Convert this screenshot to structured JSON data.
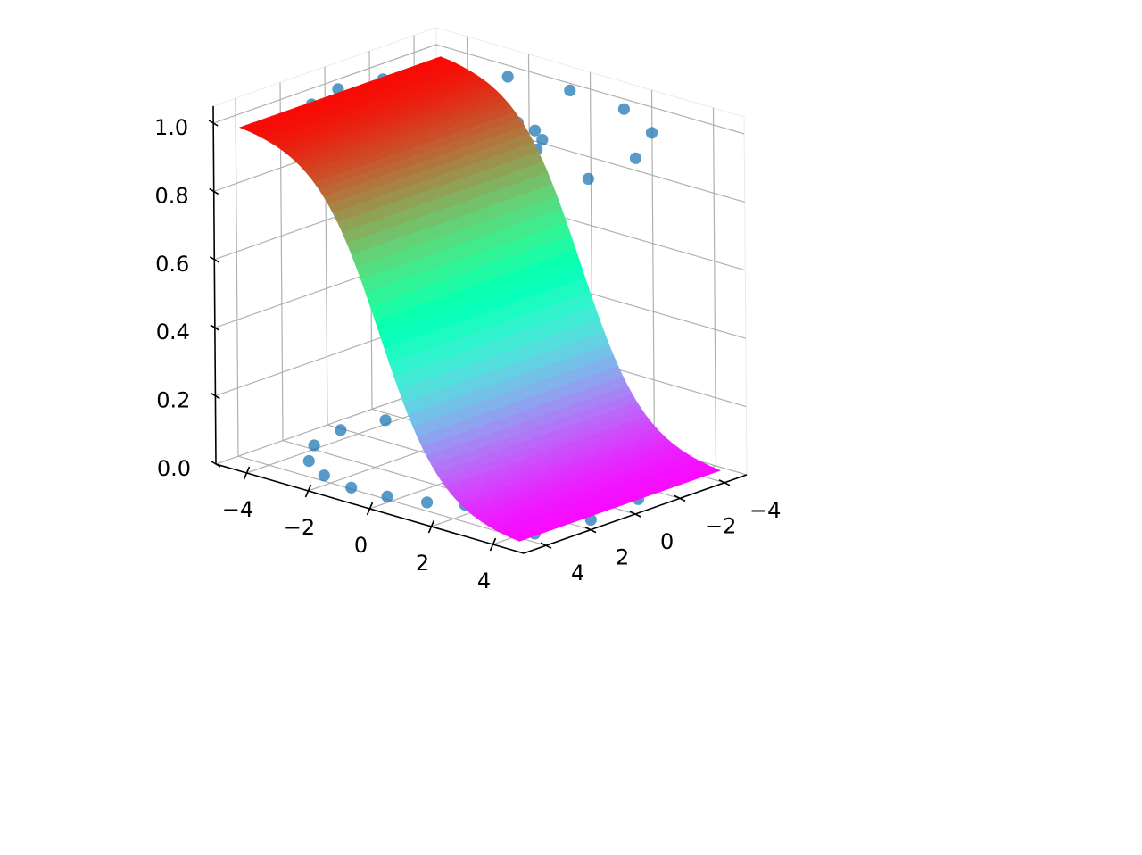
{
  "chart_data": {
    "type": "surface3d",
    "title": "",
    "xlabel": "",
    "ylabel": "",
    "zlabel": "",
    "xlim": [
      -5,
      5
    ],
    "ylim": [
      -5,
      5
    ],
    "zlim": [
      0,
      1.05
    ],
    "grid": true,
    "xticks": [
      -4,
      -2,
      0,
      2,
      4
    ],
    "yticks": [
      -4,
      -2,
      0,
      2,
      4
    ],
    "zticks": [
      0.0,
      0.2,
      0.4,
      0.6,
      0.8,
      1.0
    ],
    "xtick_labels": [
      "−4",
      "−2",
      "0",
      "2",
      "4"
    ],
    "ytick_labels": [
      "−4",
      "−2",
      "0",
      "2",
      "4"
    ],
    "ztick_labels": [
      "0.0",
      "0.2",
      "0.4",
      "0.6",
      "0.8",
      "1.0"
    ],
    "surface": {
      "function": "z = 1 / (1 + exp(x))",
      "colormap": "rainbow",
      "x_range": [
        -4.5,
        4.5
      ],
      "y_range": [
        -4.5,
        4.5
      ]
    },
    "scatter": {
      "color": "#1f77b4",
      "description": "spiral of points at z = 0 and z = 1",
      "points_z0": [
        [
          4.2,
          3.4
        ],
        [
          4.5,
          1.3
        ],
        [
          4.3,
          -1.1
        ],
        [
          3.3,
          -3.2
        ],
        [
          1.6,
          -4.3
        ],
        [
          -0.3,
          -4.5
        ],
        [
          -2.1,
          -4.2
        ],
        [
          -3.5,
          -3.0
        ],
        [
          -4.2,
          -1.5
        ],
        [
          -4.5,
          0.1
        ],
        [
          -4.2,
          1.7
        ],
        [
          -3.5,
          2.9
        ],
        [
          -2.5,
          3.6
        ],
        [
          -1.4,
          3.9
        ],
        [
          -0.3,
          3.8
        ],
        [
          0.7,
          3.4
        ],
        [
          1.5,
          2.8
        ],
        [
          2.0,
          2.0
        ],
        [
          2.2,
          1.2
        ],
        [
          2.1,
          0.3
        ],
        [
          1.7,
          -0.5
        ],
        [
          1.1,
          -1.0
        ],
        [
          0.4,
          -1.2
        ],
        [
          -0.2,
          -1.1
        ],
        [
          -0.6,
          -0.8
        ],
        [
          -0.8,
          -0.4
        ],
        [
          -0.8,
          0.0
        ],
        [
          -0.6,
          0.3
        ],
        [
          -0.3,
          0.4
        ],
        [
          0.0,
          0.3
        ]
      ],
      "points_z1": [
        [
          4.2,
          3.4
        ],
        [
          4.5,
          1.3
        ],
        [
          4.3,
          -1.1
        ],
        [
          3.3,
          -3.2
        ],
        [
          1.6,
          -4.3
        ],
        [
          -0.3,
          -4.5
        ],
        [
          -2.1,
          -4.2
        ],
        [
          -3.5,
          -3.0
        ],
        [
          -4.2,
          -1.5
        ],
        [
          -4.5,
          0.1
        ],
        [
          -4.2,
          1.7
        ],
        [
          -3.5,
          2.9
        ],
        [
          -2.5,
          3.6
        ],
        [
          -1.4,
          3.9
        ],
        [
          -0.3,
          3.8
        ],
        [
          0.7,
          3.4
        ],
        [
          1.5,
          2.8
        ],
        [
          2.0,
          2.0
        ],
        [
          2.2,
          1.2
        ],
        [
          2.1,
          0.3
        ],
        [
          1.7,
          -0.5
        ],
        [
          1.1,
          -1.0
        ],
        [
          0.4,
          -1.2
        ],
        [
          -0.2,
          -1.1
        ],
        [
          -0.6,
          -0.8
        ],
        [
          -0.8,
          -0.4
        ],
        [
          -0.8,
          0.0
        ],
        [
          -0.6,
          0.3
        ],
        [
          -0.3,
          0.4
        ],
        [
          0.0,
          0.3
        ]
      ]
    }
  }
}
